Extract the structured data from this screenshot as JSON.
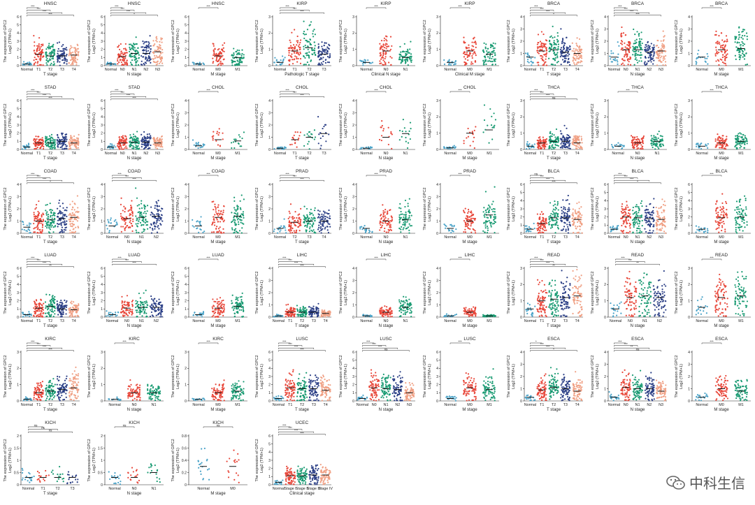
{
  "ylabel_main": "The expression of GPC2",
  "ylabel_sub": "Log2 (TPM+1)",
  "colors": {
    "normal": "#4aa3c8",
    "t1": "#e8473a",
    "t2": "#1a9b73",
    "t3": "#2b3f86",
    "t4": "#f0a084",
    "t1b": "#d9452b",
    "mean_bar": "#111111"
  },
  "watermark": "中科生信",
  "chart_data": [
    {
      "type": "scatter",
      "title": "HNSC",
      "xlabel": "T stage",
      "categories": [
        "Normal",
        "T1",
        "T2",
        "T3",
        "T4"
      ],
      "values": [
        0.2,
        1.4,
        1.2,
        1.2,
        1.3
      ],
      "ylim": [
        0,
        6
      ],
      "sig": [
        "***",
        "***",
        "***",
        "***"
      ]
    },
    {
      "type": "scatter",
      "title": "HNSC",
      "xlabel": "N stage",
      "categories": [
        "Normal",
        "N0",
        "N1",
        "N2",
        "N3"
      ],
      "values": [
        0.2,
        1.1,
        1.5,
        1.5,
        1.7
      ],
      "ylim": [
        0,
        6
      ],
      "sig": [
        "***",
        "***",
        "***",
        "*"
      ]
    },
    {
      "type": "scatter",
      "title": "HNSC",
      "xlabel": "M stage",
      "categories": [
        "Normal",
        "M0",
        "M1"
      ],
      "values": [
        0.2,
        1.2,
        1.0
      ],
      "ylim": [
        0,
        6
      ],
      "sig": [
        "***"
      ]
    },
    {
      "type": "scatter",
      "title": "KIRP",
      "xlabel": "Pathologic T stage",
      "categories": [
        "Normal",
        "T1",
        "T2",
        "T3"
      ],
      "values": [
        0.2,
        0.9,
        1.1,
        0.7
      ],
      "ylim": [
        0,
        3
      ],
      "sig": [
        "***",
        "***",
        "***"
      ]
    },
    {
      "type": "scatter",
      "title": "KIRP",
      "xlabel": "Clinical N stage",
      "categories": [
        "Normal",
        "N0",
        "N1"
      ],
      "values": [
        0.2,
        0.9,
        0.5
      ],
      "ylim": [
        0,
        3
      ],
      "sig": [
        "***"
      ]
    },
    {
      "type": "scatter",
      "title": "KIRP",
      "xlabel": "Clinical M stage",
      "categories": [
        "Normal",
        "M0",
        "M1"
      ],
      "values": [
        0.2,
        0.9,
        0.7
      ],
      "ylim": [
        0,
        3
      ],
      "sig": [
        "***"
      ]
    },
    {
      "type": "scatter",
      "title": "BRCA",
      "xlabel": "T stage",
      "categories": [
        "Normal",
        "T1",
        "T2",
        "T3",
        "T4"
      ],
      "values": [
        0.7,
        1.2,
        1.3,
        1.1,
        1.0
      ],
      "ylim": [
        0,
        4
      ],
      "sig": [
        "***",
        "***",
        "***",
        "*"
      ]
    },
    {
      "type": "scatter",
      "title": "BRCA",
      "xlabel": "N stage",
      "categories": [
        "Normal",
        "N0",
        "N1",
        "N2",
        "N3"
      ],
      "values": [
        0.7,
        1.3,
        1.3,
        1.1,
        1.2
      ],
      "ylim": [
        0,
        4
      ],
      "sig": [
        "***",
        "***",
        "***",
        "***"
      ]
    },
    {
      "type": "scatter",
      "title": "BRCA",
      "xlabel": "M stage",
      "categories": [
        "Normal",
        "M0",
        "M1"
      ],
      "values": [
        0.7,
        1.3,
        1.4
      ],
      "ylim": [
        0,
        4
      ],
      "sig": [
        "***"
      ]
    },
    {
      "type": "scatter",
      "title": "STAD",
      "xlabel": "T stage",
      "categories": [
        "Normal",
        "T1",
        "T2",
        "T3",
        "T4"
      ],
      "values": [
        0.3,
        0.8,
        0.8,
        1.0,
        0.8
      ],
      "ylim": [
        0,
        6
      ],
      "sig": [
        "***",
        "***",
        "***",
        "***"
      ]
    },
    {
      "type": "scatter",
      "title": "STAD",
      "xlabel": "N stage",
      "categories": [
        "Normal",
        "N0",
        "N1",
        "N2",
        "N3"
      ],
      "values": [
        0.3,
        0.8,
        0.9,
        0.9,
        0.8
      ],
      "ylim": [
        0,
        6
      ],
      "sig": [
        "***",
        "***",
        "***",
        "***"
      ]
    },
    {
      "type": "scatter",
      "title": "CHOL",
      "xlabel": "M stage",
      "categories": [
        "Normal",
        "M0",
        "M1"
      ],
      "values": [
        0.3,
        0.8,
        0.7
      ],
      "ylim": [
        0,
        4
      ],
      "sig": [
        "***"
      ]
    },
    {
      "type": "scatter",
      "title": "CHOL",
      "xlabel": "T stage",
      "categories": [
        "Normal",
        "T1",
        "T2",
        "T3"
      ],
      "values": [
        0.1,
        0.8,
        1.0,
        1.3
      ],
      "ylim": [
        0,
        4
      ],
      "sig": [
        "***",
        "***",
        "***"
      ]
    },
    {
      "type": "scatter",
      "title": "CHOL",
      "xlabel": "N stage",
      "categories": [
        "Normal",
        "N0",
        "N1"
      ],
      "values": [
        0.1,
        1.0,
        1.3
      ],
      "ylim": [
        0,
        4
      ],
      "sig": [
        "***"
      ]
    },
    {
      "type": "scatter",
      "title": "CHOL",
      "xlabel": "M stage",
      "categories": [
        "Normal",
        "M0",
        "M1"
      ],
      "values": [
        0.1,
        1.0,
        1.2
      ],
      "ylim": [
        0,
        3
      ],
      "sig": [
        "***"
      ]
    },
    {
      "type": "scatter",
      "title": "THCA",
      "xlabel": "T stage",
      "categories": [
        "Normal",
        "T1",
        "T2",
        "T3",
        "T4"
      ],
      "values": [
        0.2,
        0.4,
        0.5,
        0.5,
        0.4
      ],
      "ylim": [
        0,
        3
      ],
      "sig": [
        "***",
        "***",
        "***",
        "ns"
      ]
    },
    {
      "type": "scatter",
      "title": "THCA",
      "xlabel": "N stage",
      "categories": [
        "Normal",
        "N0",
        "N1"
      ],
      "values": [
        0.2,
        0.4,
        0.5
      ],
      "ylim": [
        0,
        3
      ],
      "sig": [
        "***"
      ]
    },
    {
      "type": "scatter",
      "title": "THCA",
      "xlabel": "M stage",
      "categories": [
        "Normal",
        "M0",
        "M1"
      ],
      "values": [
        0.2,
        0.4,
        0.5
      ],
      "ylim": [
        0,
        3
      ],
      "sig": [
        "***"
      ]
    },
    {
      "type": "scatter",
      "title": "COAD",
      "xlabel": "T stage",
      "categories": [
        "Normal",
        "T1",
        "T2",
        "T3",
        "T4"
      ],
      "values": [
        0.5,
        1.0,
        1.1,
        1.2,
        1.3
      ],
      "ylim": [
        0,
        4
      ],
      "sig": [
        "***",
        "***",
        "***",
        "*"
      ]
    },
    {
      "type": "scatter",
      "title": "COAD",
      "xlabel": "N stage",
      "categories": [
        "Normal",
        "N0",
        "N1",
        "N2"
      ],
      "values": [
        0.6,
        1.2,
        1.3,
        1.4
      ],
      "ylim": [
        0,
        4
      ],
      "sig": [
        "***",
        "***",
        "***"
      ]
    },
    {
      "type": "scatter",
      "title": "COAD",
      "xlabel": "M stage",
      "categories": [
        "Normal",
        "M0",
        "M1"
      ],
      "values": [
        0.6,
        1.3,
        1.4
      ],
      "ylim": [
        0,
        4
      ],
      "sig": [
        "***"
      ]
    },
    {
      "type": "scatter",
      "title": "PRAD",
      "xlabel": "T stage",
      "categories": [
        "Normal",
        "T2",
        "T3",
        "T4"
      ],
      "values": [
        0.4,
        0.9,
        1.0,
        1.0
      ],
      "ylim": [
        0,
        4
      ],
      "sig": [
        "***",
        "***",
        "***"
      ]
    },
    {
      "type": "scatter",
      "title": "PRAD",
      "xlabel": "N stage",
      "categories": [
        "Normal",
        "N0",
        "N1"
      ],
      "values": [
        0.4,
        1.0,
        1.1
      ],
      "ylim": [
        0,
        4
      ],
      "sig": [
        "***"
      ]
    },
    {
      "type": "scatter",
      "title": "PRAD",
      "xlabel": "M stage",
      "categories": [
        "Normal",
        "M0",
        "M1"
      ],
      "values": [
        0.4,
        1.0,
        1.5
      ],
      "ylim": [
        0,
        4
      ],
      "sig": [
        "***"
      ]
    },
    {
      "type": "scatter",
      "title": "BLCA",
      "xlabel": "T stage",
      "categories": [
        "Normal",
        "T1",
        "T2",
        "T3",
        "T4"
      ],
      "values": [
        0.5,
        1.2,
        1.9,
        1.9,
        1.7
      ],
      "ylim": [
        0,
        6
      ],
      "sig": [
        "ns",
        "***",
        "***",
        "***"
      ]
    },
    {
      "type": "scatter",
      "title": "BLCA",
      "xlabel": "N stage",
      "categories": [
        "Normal",
        "N0",
        "N1",
        "N2",
        "N3"
      ],
      "values": [
        0.5,
        2.0,
        1.9,
        1.8,
        1.7
      ],
      "ylim": [
        0,
        6
      ],
      "sig": [
        "***",
        "***",
        "***",
        "*"
      ]
    },
    {
      "type": "scatter",
      "title": "BLCA",
      "xlabel": "M stage",
      "categories": [
        "Normal",
        "M0",
        "M1"
      ],
      "values": [
        0.5,
        1.9,
        2.0
      ],
      "ylim": [
        0,
        6
      ],
      "sig": [
        "***"
      ]
    },
    {
      "type": "scatter",
      "title": "LUAD",
      "xlabel": "T stage",
      "categories": [
        "Normal",
        "T1",
        "T2",
        "T3",
        "T4"
      ],
      "values": [
        0.3,
        1.1,
        1.3,
        1.0,
        0.9
      ],
      "ylim": [
        0,
        6
      ],
      "sig": [
        "***",
        "***",
        "***",
        "**"
      ]
    },
    {
      "type": "scatter",
      "title": "LUAD",
      "xlabel": "N stage",
      "categories": [
        "Normal",
        "N0",
        "N1",
        "N2"
      ],
      "values": [
        0.3,
        1.1,
        1.2,
        1.2
      ],
      "ylim": [
        0,
        6
      ],
      "sig": [
        "***",
        "***",
        "***"
      ]
    },
    {
      "type": "scatter",
      "title": "LUAD",
      "xlabel": "M stage",
      "categories": [
        "Normal",
        "M0",
        "M1"
      ],
      "values": [
        0.3,
        1.1,
        1.3
      ],
      "ylim": [
        0,
        6
      ],
      "sig": [
        "***"
      ]
    },
    {
      "type": "scatter",
      "title": "LIHC",
      "xlabel": "T stage",
      "categories": [
        "Normal",
        "T1",
        "T2",
        "T3",
        "T4"
      ],
      "values": [
        0.1,
        0.4,
        0.4,
        0.4,
        0.3
      ],
      "ylim": [
        0,
        4
      ],
      "sig": [
        "***",
        "***",
        "***",
        "***"
      ]
    },
    {
      "type": "scatter",
      "title": "LIHC",
      "xlabel": "N stage",
      "categories": [
        "Normal",
        "N0",
        "N1"
      ],
      "values": [
        0.1,
        0.4,
        0.8
      ],
      "ylim": [
        0,
        4
      ],
      "sig": [
        "***"
      ]
    },
    {
      "type": "scatter",
      "title": "LIHC",
      "xlabel": "M stage",
      "categories": [
        "Normal",
        "M0",
        "M1"
      ],
      "values": [
        0.1,
        0.4,
        0.1
      ],
      "ylim": [
        0,
        4
      ],
      "sig": [
        "***"
      ]
    },
    {
      "type": "scatter",
      "title": "READ",
      "xlabel": "T stage",
      "categories": [
        "Normal",
        "T1",
        "T2",
        "T3",
        "T4"
      ],
      "values": [
        0.5,
        1.0,
        1.1,
        1.2,
        1.3
      ],
      "ylim": [
        0,
        3
      ],
      "sig": [
        "***",
        "***",
        "***",
        "**"
      ]
    },
    {
      "type": "scatter",
      "title": "READ",
      "xlabel": "N stage",
      "categories": [
        "Normal",
        "N0",
        "N1",
        "N2"
      ],
      "values": [
        0.5,
        1.2,
        1.3,
        1.2
      ],
      "ylim": [
        0,
        3
      ],
      "sig": [
        "***",
        "***",
        "**"
      ]
    },
    {
      "type": "scatter",
      "title": "READ",
      "xlabel": "M stage",
      "categories": [
        "Normal",
        "M0",
        "M1"
      ],
      "values": [
        0.6,
        1.2,
        1.3
      ],
      "ylim": [
        0,
        3
      ],
      "sig": [
        "***"
      ]
    },
    {
      "type": "scatter",
      "title": "KIRC",
      "xlabel": "T stage",
      "categories": [
        "Normal",
        "T1",
        "T2",
        "T3",
        "T4"
      ],
      "values": [
        0.1,
        0.5,
        0.6,
        0.7,
        0.8
      ],
      "ylim": [
        0,
        3
      ],
      "sig": [
        "***",
        "***",
        "***",
        "***"
      ]
    },
    {
      "type": "scatter",
      "title": "KIRC",
      "xlabel": "N stage",
      "categories": [
        "Normal",
        "N0",
        "N1"
      ],
      "values": [
        0.1,
        0.5,
        0.5
      ],
      "ylim": [
        0,
        3
      ],
      "sig": [
        "***"
      ]
    },
    {
      "type": "scatter",
      "title": "KIRC",
      "xlabel": "M stage",
      "categories": [
        "Normal",
        "M0",
        "M1"
      ],
      "values": [
        0.1,
        0.5,
        0.6
      ],
      "ylim": [
        0,
        3
      ],
      "sig": [
        "***"
      ]
    },
    {
      "type": "scatter",
      "title": "LUSC",
      "xlabel": "T stage",
      "categories": [
        "Normal",
        "T1",
        "T2",
        "T3",
        "T4"
      ],
      "values": [
        0.3,
        1.6,
        1.5,
        1.5,
        1.3
      ],
      "ylim": [
        0,
        6
      ],
      "sig": [
        "***",
        "***",
        "***",
        "***"
      ]
    },
    {
      "type": "scatter",
      "title": "LUSC",
      "xlabel": "N stage",
      "categories": [
        "Normal",
        "N0",
        "N1",
        "N2",
        "N3"
      ],
      "values": [
        0.3,
        1.6,
        1.5,
        1.4,
        1.0
      ],
      "ylim": [
        0,
        6
      ],
      "sig": [
        "***",
        "***",
        "***",
        "ns"
      ]
    },
    {
      "type": "scatter",
      "title": "LUSC",
      "xlabel": "M stage",
      "categories": [
        "Normal",
        "M0",
        "M1"
      ],
      "values": [
        0.3,
        1.6,
        1.4
      ],
      "ylim": [
        0,
        6
      ],
      "sig": [
        "***"
      ]
    },
    {
      "type": "scatter",
      "title": "ESCA",
      "xlabel": "T stage",
      "categories": [
        "Normal",
        "T1",
        "T2",
        "T3",
        "T4"
      ],
      "values": [
        0.3,
        0.9,
        1.1,
        1.0,
        0.8
      ],
      "ylim": [
        0,
        4
      ],
      "sig": [
        "*",
        "***",
        "***",
        "*"
      ]
    },
    {
      "type": "scatter",
      "title": "ESCA",
      "xlabel": "N stage",
      "categories": [
        "Normal",
        "N0",
        "N1",
        "N2",
        "N3"
      ],
      "values": [
        0.3,
        1.1,
        1.0,
        1.0,
        0.8
      ],
      "ylim": [
        0,
        4
      ],
      "sig": [
        "***",
        "***",
        "**",
        "ns"
      ]
    },
    {
      "type": "scatter",
      "title": "ESCA",
      "xlabel": "M stage",
      "categories": [
        "Normal",
        "M0",
        "M1"
      ],
      "values": [
        0.3,
        1.0,
        0.8
      ],
      "ylim": [
        0,
        4
      ],
      "sig": [
        "***"
      ]
    },
    {
      "type": "scatter",
      "title": "KICH",
      "xlabel": "T stage",
      "categories": [
        "Normal",
        "T1",
        "T2",
        "T3"
      ],
      "values": [
        0.3,
        0.3,
        0.3,
        0.3
      ],
      "ylim": [
        0,
        2
      ],
      "sig": [
        "ns",
        "ns",
        "ns"
      ]
    },
    {
      "type": "scatter",
      "title": "KICH",
      "xlabel": "N stage",
      "categories": [
        "Normal",
        "N0",
        "N1"
      ],
      "values": [
        0.3,
        0.3,
        0.5
      ],
      "ylim": [
        0,
        2
      ],
      "sig": [
        "ns"
      ]
    },
    {
      "type": "scatter",
      "title": "KICH",
      "xlabel": "M stage",
      "categories": [
        "Normal",
        "M0"
      ],
      "values": [
        0.3,
        0.3
      ],
      "ylim": [
        0,
        0.8
      ],
      "sig": [
        "ns"
      ]
    },
    {
      "type": "scatter",
      "title": "UCEC",
      "xlabel": "Clinical stage",
      "categories": [
        "Normal",
        "Stage I",
        "Stage II",
        "Stage III",
        "Stage IV"
      ],
      "values": [
        0.3,
        1.1,
        1.1,
        1.2,
        1.2
      ],
      "ylim": [
        0,
        6
      ],
      "sig": [
        "***",
        "***",
        "***",
        "***"
      ]
    }
  ]
}
